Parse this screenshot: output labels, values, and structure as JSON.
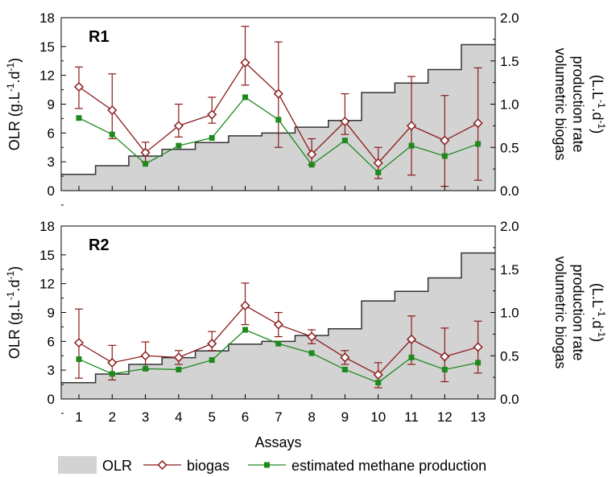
{
  "chart_data": {
    "type": "step-area + line",
    "x_label": "Assays",
    "x_categories": [
      1,
      2,
      3,
      4,
      5,
      6,
      7,
      8,
      9,
      10,
      11,
      12,
      13
    ],
    "left_axis": {
      "label_parts": [
        "OLR (g.L",
        "-1",
        ".d",
        "-1",
        ")"
      ],
      "range": [
        0,
        18
      ],
      "ticks": [
        0,
        3,
        6,
        9,
        12,
        15,
        18
      ]
    },
    "right_axis": {
      "label_line1": "volumetric biogas",
      "label_line2": "production rate",
      "label2_parts": [
        "(L.L",
        "-1",
        ".d",
        "-1",
        ")"
      ],
      "range": [
        0,
        2.0
      ],
      "ticks": [
        "0.0",
        "0.5",
        "1.0",
        "1.5",
        "2.0"
      ]
    },
    "legend": {
      "olr": "OLR",
      "biogas": "biogas",
      "methane": "estimated methane production"
    },
    "colors": {
      "olr_fill": "#d3d3d3",
      "olr_line": "#333333",
      "biogas": "#8b1a1a",
      "methane": "#1e8a1e"
    },
    "panels": [
      {
        "label": "R1",
        "olr": [
          1.7,
          2.6,
          3.6,
          4.3,
          5.0,
          5.7,
          6.0,
          6.6,
          7.3,
          10.2,
          11.2,
          12.6,
          15.2
        ],
        "biogas": [
          1.2,
          0.93,
          0.44,
          0.75,
          0.88,
          1.48,
          1.12,
          0.42,
          0.8,
          0.32,
          0.75,
          0.58,
          0.78
        ],
        "biogas_err_low": [
          0.95,
          0.6,
          0.33,
          0.62,
          0.78,
          1.22,
          0.5,
          0.3,
          0.65,
          0.14,
          0.18,
          0.05,
          0.12
        ],
        "biogas_err_high": [
          1.43,
          1.35,
          0.56,
          1.0,
          1.08,
          1.9,
          1.72,
          0.6,
          1.12,
          0.5,
          1.32,
          1.1,
          1.42
        ],
        "methane": [
          0.84,
          0.65,
          0.31,
          0.52,
          0.61,
          1.08,
          0.82,
          0.3,
          0.58,
          0.21,
          0.52,
          0.4,
          0.54
        ]
      },
      {
        "label": "R2",
        "olr": [
          1.7,
          2.6,
          3.6,
          4.3,
          5.0,
          5.7,
          6.0,
          6.6,
          7.3,
          10.2,
          11.2,
          12.6,
          15.2
        ],
        "biogas": [
          0.65,
          0.42,
          0.5,
          0.48,
          0.64,
          1.08,
          0.86,
          0.72,
          0.48,
          0.28,
          0.69,
          0.49,
          0.6
        ],
        "biogas_err_low": [
          0.24,
          0.22,
          0.34,
          0.4,
          0.56,
          0.86,
          0.72,
          0.64,
          0.4,
          0.13,
          0.4,
          0.2,
          0.3
        ],
        "biogas_err_high": [
          1.04,
          0.62,
          0.66,
          0.56,
          0.78,
          1.34,
          1.0,
          0.8,
          0.56,
          0.42,
          0.96,
          0.82,
          0.9
        ],
        "methane": [
          0.46,
          0.29,
          0.35,
          0.34,
          0.45,
          0.8,
          0.64,
          0.53,
          0.34,
          0.19,
          0.48,
          0.34,
          0.42
        ]
      }
    ]
  }
}
